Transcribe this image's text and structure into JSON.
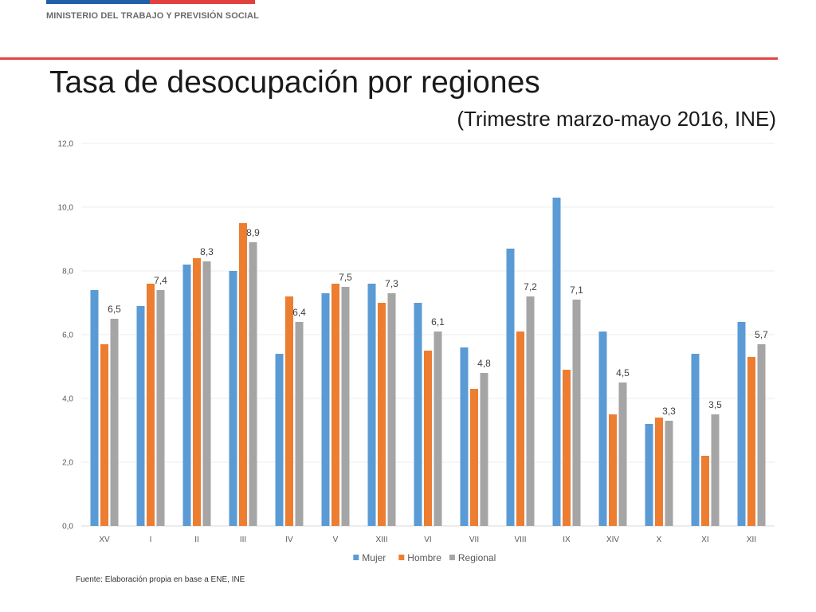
{
  "header": {
    "ministry": "MINISTERIO DEL TRABAJO Y PREVISIÓN SOCIAL",
    "title": "Tasa de desocupación por regiones",
    "subtitle": "(Trimestre marzo-mayo 2016, INE)"
  },
  "footer": {
    "source": "Fuente: Elaboración propia en base a ENE, INE"
  },
  "colors": {
    "flag_blue": "#1f5fa8",
    "flag_red": "#e0413d",
    "rule": "#e34343"
  },
  "chart_data": {
    "type": "bar",
    "categories": [
      "XV",
      "I",
      "II",
      "III",
      "IV",
      "V",
      "XIII",
      "VI",
      "VII",
      "VIII",
      "IX",
      "XIV",
      "X",
      "XI",
      "XII"
    ],
    "series": [
      {
        "name": "Mujer",
        "color": "#5b9bd5",
        "values": [
          7.4,
          6.9,
          8.2,
          8.0,
          5.4,
          7.3,
          7.6,
          7.0,
          5.6,
          8.7,
          10.3,
          6.1,
          3.2,
          5.4,
          6.4
        ]
      },
      {
        "name": "Hombre",
        "color": "#ed7d31",
        "values": [
          5.7,
          7.6,
          8.4,
          9.5,
          7.2,
          7.6,
          7.0,
          5.5,
          4.3,
          6.1,
          4.9,
          3.5,
          3.4,
          2.2,
          5.3
        ]
      },
      {
        "name": "Regional",
        "color": "#a5a5a5",
        "values": [
          6.5,
          7.4,
          8.3,
          8.9,
          6.4,
          7.5,
          7.3,
          6.1,
          4.8,
          7.2,
          7.1,
          4.5,
          3.3,
          3.5,
          5.7
        ]
      }
    ],
    "data_labels": [
      "6,5",
      "7,4",
      "8,3",
      "8,9",
      "6,4",
      "7,5",
      "7,3",
      "6,1",
      "4,8",
      "7,2",
      "7,1",
      "4,5",
      "3,3",
      "3,5",
      "5,7"
    ],
    "y_ticks": [
      0,
      2,
      4,
      6,
      8,
      10,
      12
    ],
    "y_tick_labels": [
      "0,0",
      "2,0",
      "4,0",
      "6,0",
      "8,0",
      "10,0",
      "12,0"
    ],
    "ylim": [
      0,
      12
    ],
    "grid": true,
    "legend_position": "bottom-center",
    "xlabel": "",
    "ylabel": ""
  }
}
